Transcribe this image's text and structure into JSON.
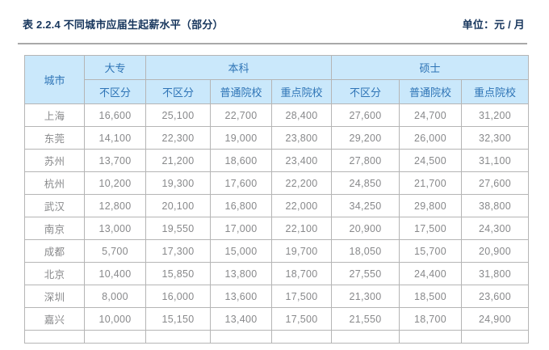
{
  "page": {
    "title": "表 2.2.4 不同城市应届生起薪水平（部分）",
    "unit_label": "单位：元 / 月"
  },
  "table": {
    "header": {
      "city": "城市",
      "groups": [
        {
          "label": "大专",
          "subs": [
            "不区分"
          ]
        },
        {
          "label": "本科",
          "subs": [
            "不区分",
            "普通院校",
            "重点院校"
          ]
        },
        {
          "label": "硕士",
          "subs": [
            "不区分",
            "普通院校",
            "重点院校"
          ]
        }
      ]
    },
    "rows": [
      {
        "city": "上海",
        "values": [
          "16,600",
          "25,100",
          "22,700",
          "28,400",
          "27,600",
          "24,700",
          "31,200"
        ]
      },
      {
        "city": "东莞",
        "values": [
          "14,100",
          "22,300",
          "19,000",
          "23,800",
          "29,200",
          "26,000",
          "32,300"
        ]
      },
      {
        "city": "苏州",
        "values": [
          "13,700",
          "21,200",
          "18,600",
          "23,400",
          "27,800",
          "24,500",
          "31,100"
        ]
      },
      {
        "city": "杭州",
        "values": [
          "10,200",
          "19,300",
          "17,600",
          "22,200",
          "24,850",
          "21,700",
          "27,600"
        ]
      },
      {
        "city": "武汉",
        "values": [
          "12,800",
          "20,100",
          "16,800",
          "22,000",
          "34,250",
          "29,800",
          "38,800"
        ]
      },
      {
        "city": "南京",
        "values": [
          "13,000",
          "19,550",
          "17,000",
          "22,100",
          "20,900",
          "17,500",
          "24,300"
        ]
      },
      {
        "city": "成都",
        "values": [
          "5,700",
          "17,300",
          "15,000",
          "19,700",
          "18,050",
          "15,700",
          "20,900"
        ]
      },
      {
        "city": "北京",
        "values": [
          "10,400",
          "15,850",
          "13,800",
          "18,700",
          "27,550",
          "24,400",
          "31,800"
        ]
      },
      {
        "city": "深圳",
        "values": [
          "8,000",
          "16,000",
          "13,600",
          "17,500",
          "21,300",
          "18,500",
          "23,600"
        ]
      },
      {
        "city": "嘉兴",
        "values": [
          "10,000",
          "15,150",
          "13,400",
          "17,500",
          "21,550",
          "18,700",
          "24,900"
        ]
      }
    ]
  },
  "colors": {
    "title_text": "#17365d",
    "header_fill": "#cae8fb",
    "header_text": "#2e74b6",
    "body_text": "#88898b",
    "border": "#b5b5b5",
    "divider": "#a9a9a9"
  }
}
